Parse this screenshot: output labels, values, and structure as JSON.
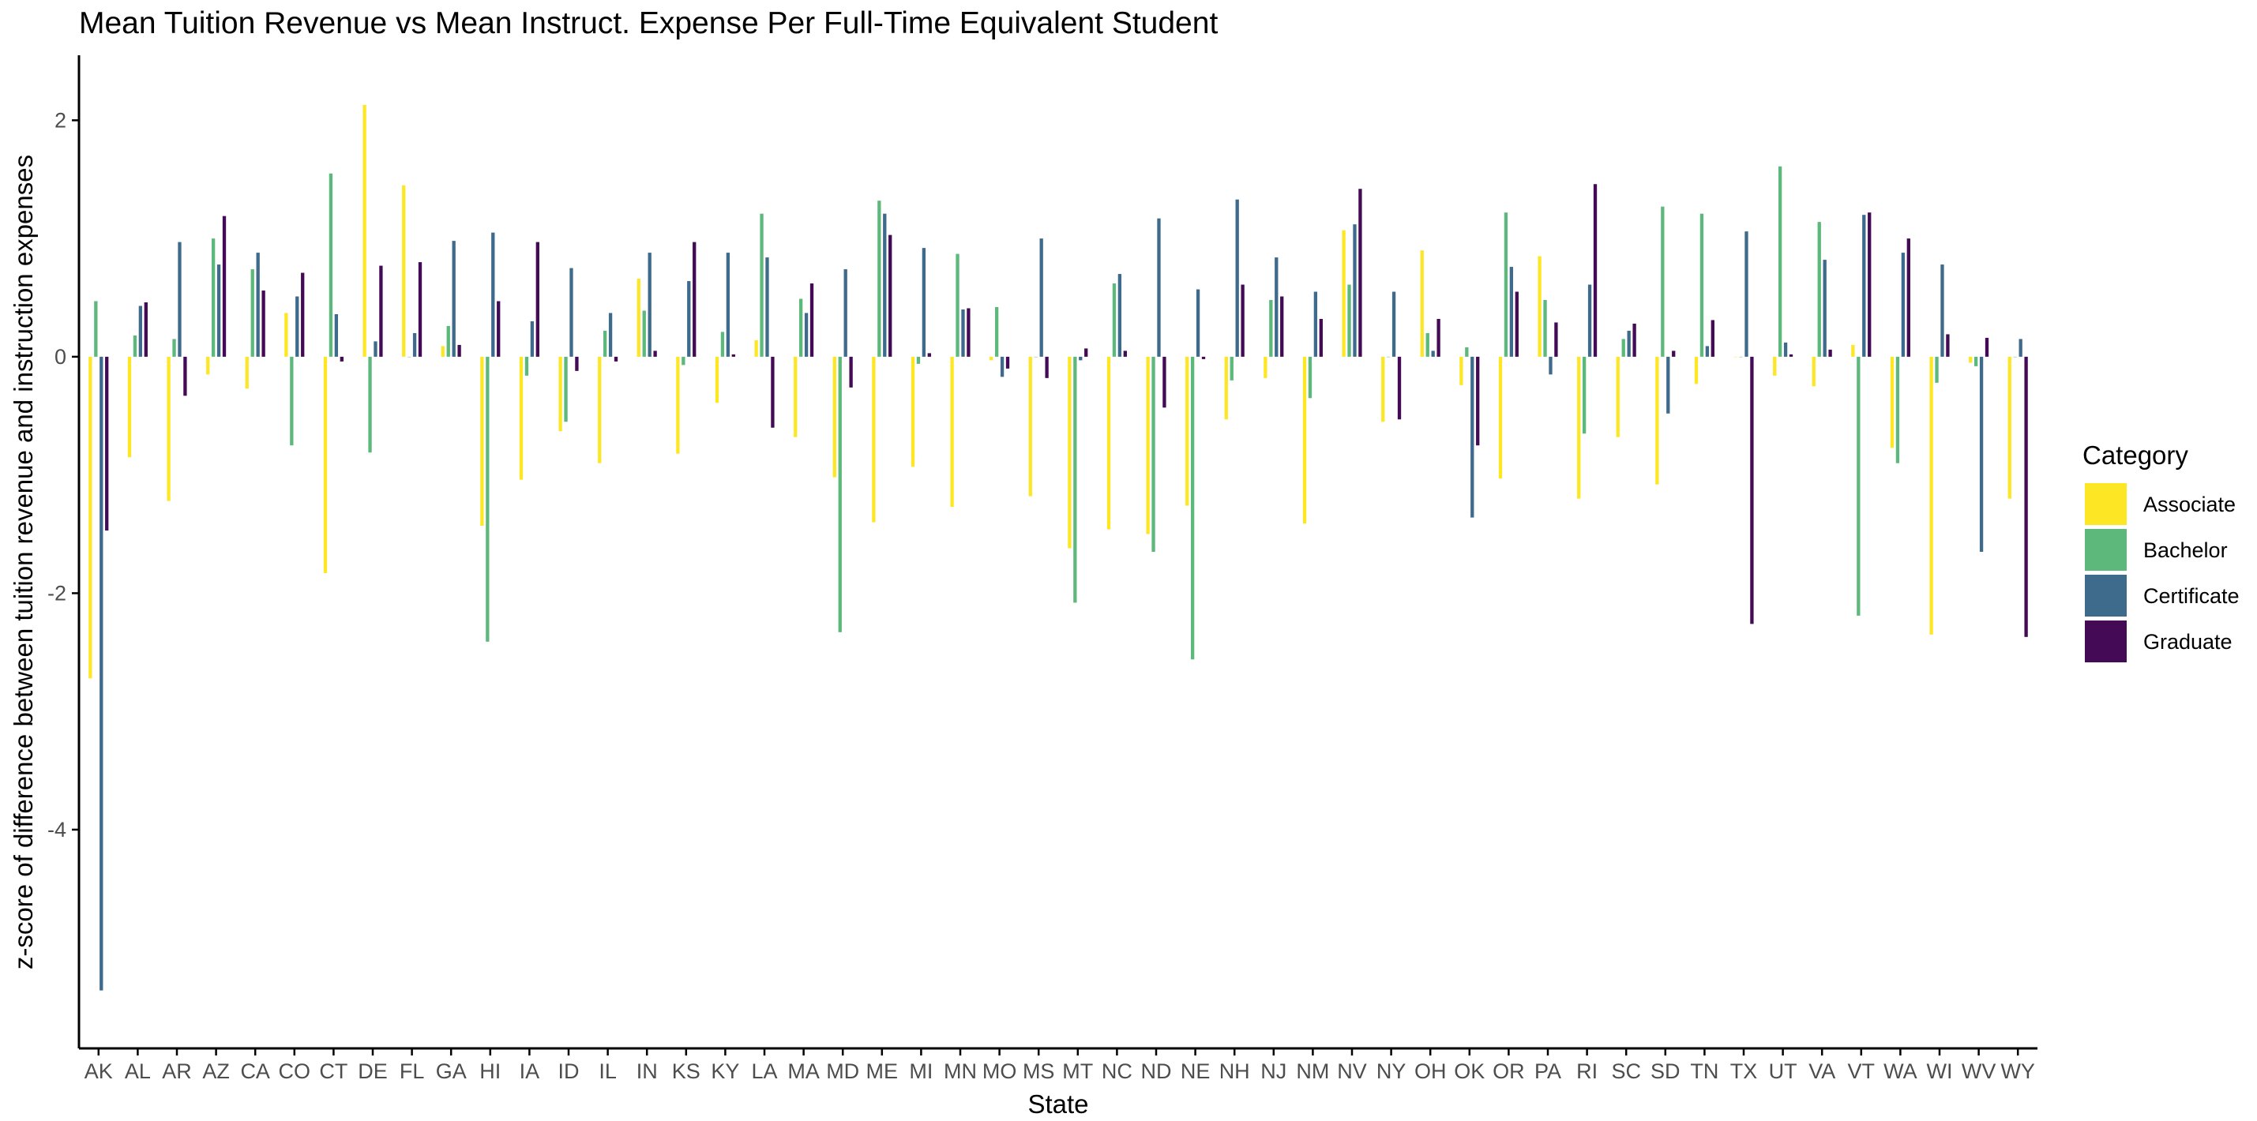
{
  "chart_data": {
    "type": "bar",
    "title": "Mean Tuition Revenue vs Mean Instruct. Expense Per Full-Time Equivalent Student",
    "xlabel": "State",
    "ylabel": "z-score of difference between tuition revenue and instruction expenses",
    "ylim": [
      -5.85,
      2.55
    ],
    "yticks": [
      2,
      0,
      -2,
      -4
    ],
    "ytick_labels": [
      "2",
      "0",
      "-2",
      "-4"
    ],
    "grid": false,
    "legend": {
      "title": "Category",
      "position": "right"
    },
    "categories": [
      "AK",
      "AL",
      "AR",
      "AZ",
      "CA",
      "CO",
      "CT",
      "DE",
      "FL",
      "GA",
      "HI",
      "IA",
      "ID",
      "IL",
      "IN",
      "KS",
      "KY",
      "LA",
      "MA",
      "MD",
      "ME",
      "MI",
      "MN",
      "MO",
      "MS",
      "MT",
      "NC",
      "ND",
      "NE",
      "NH",
      "NJ",
      "NM",
      "NV",
      "NY",
      "OH",
      "OK",
      "OR",
      "PA",
      "RI",
      "SC",
      "SD",
      "TN",
      "TX",
      "UT",
      "VA",
      "VT",
      "WA",
      "WI",
      "WV",
      "WY"
    ],
    "series": [
      {
        "name": "Associate",
        "color": "#FDE725",
        "values": [
          -2.72,
          -0.85,
          -1.22,
          -0.15,
          -0.27,
          0.37,
          -1.83,
          2.13,
          1.45,
          0.09,
          -1.43,
          -1.04,
          -0.63,
          -0.9,
          0.66,
          -0.82,
          -0.39,
          0.14,
          -0.68,
          -1.02,
          -1.4,
          -0.93,
          -1.27,
          -0.03,
          -1.18,
          -1.62,
          -1.46,
          -1.5,
          -1.26,
          -0.53,
          -0.18,
          -1.41,
          1.07,
          -0.55,
          0.9,
          -0.24,
          -1.03,
          0.85,
          -1.2,
          -0.68,
          -1.08,
          -0.23,
          0.0,
          -0.16,
          -0.25,
          0.1,
          -0.77,
          -2.35,
          -0.05,
          -1.2
        ]
      },
      {
        "name": "Bachelor",
        "color": "#5DB97B",
        "values": [
          0.47,
          0.18,
          0.15,
          1.0,
          0.74,
          -0.75,
          1.55,
          -0.81,
          0.0,
          0.26,
          -2.41,
          -0.16,
          -0.55,
          0.22,
          0.39,
          -0.07,
          0.21,
          1.21,
          0.49,
          -2.33,
          1.32,
          -0.06,
          0.87,
          0.42,
          0.0,
          -2.08,
          0.62,
          -1.65,
          -2.56,
          -0.2,
          0.48,
          -0.35,
          0.61,
          0.0,
          0.2,
          0.08,
          1.22,
          0.48,
          -0.65,
          0.15,
          1.27,
          1.21,
          0.0,
          1.61,
          1.14,
          -2.19,
          -0.9,
          -0.22,
          -0.08,
          0.0
        ]
      },
      {
        "name": "Certificate",
        "color": "#3E6A8C",
        "values": [
          -5.36,
          0.43,
          0.97,
          0.78,
          0.88,
          0.51,
          0.36,
          0.13,
          0.2,
          0.98,
          1.05,
          0.3,
          0.75,
          0.37,
          0.88,
          0.64,
          0.88,
          0.84,
          0.37,
          0.74,
          1.21,
          0.92,
          0.4,
          -0.17,
          1.0,
          -0.03,
          0.7,
          1.17,
          0.57,
          1.33,
          0.84,
          0.55,
          1.12,
          0.55,
          0.05,
          -1.36,
          0.76,
          -0.15,
          0.61,
          0.22,
          -0.48,
          0.09,
          1.06,
          0.12,
          0.82,
          1.2,
          0.88,
          0.78,
          -1.65,
          0.15
        ]
      },
      {
        "name": "Graduate",
        "color": "#440A55",
        "values": [
          -1.47,
          0.46,
          -0.33,
          1.19,
          0.56,
          0.71,
          -0.04,
          0.77,
          0.8,
          0.1,
          0.47,
          0.97,
          -0.12,
          -0.04,
          0.05,
          0.97,
          0.02,
          -0.6,
          0.62,
          -0.26,
          1.03,
          0.03,
          0.41,
          -0.1,
          -0.18,
          0.07,
          0.05,
          -0.43,
          -0.02,
          0.61,
          0.51,
          0.32,
          1.42,
          -0.53,
          0.32,
          -0.75,
          0.55,
          0.29,
          1.46,
          0.28,
          0.05,
          0.31,
          -2.26,
          0.02,
          0.06,
          1.22,
          1.0,
          0.19,
          0.16,
          -2.37
        ]
      }
    ]
  }
}
